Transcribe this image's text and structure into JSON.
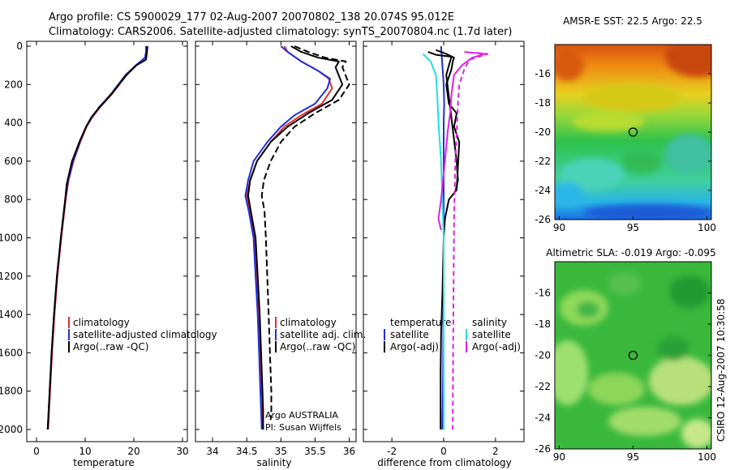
{
  "header": {
    "title_line1": "Argo profile: CS 5900029_177 02-Aug-2007 20070802_138 20.074S 95.012E",
    "title_line2": "Climatology: CARS2006. Satellite-adjusted climatology: synTS_20070804.nc (1.7d later)"
  },
  "side_label": "CSIRO 12-Aug-2007 10:30:58",
  "credit": {
    "line1": "Argo AUSTRALIA",
    "line2": "PI: Susan Wijffels"
  },
  "colors": {
    "red": "#e03030",
    "blue": "#1f2fd8",
    "black": "#000000",
    "cyan": "#22e0e0",
    "magenta": "#e020e0"
  },
  "chart_data": [
    {
      "type": "line",
      "xlabel": "temperature",
      "ylabel": "",
      "xlim": [
        -2,
        31
      ],
      "ylim": [
        2050,
        0
      ],
      "y_reversed": true,
      "xticks": [
        0,
        10,
        20,
        30
      ],
      "yticks": [
        0,
        200,
        400,
        600,
        800,
        1000,
        1200,
        1400,
        1600,
        1800,
        2000
      ],
      "legend": [
        "climatology",
        "satellite-adjusted climatology",
        "Argo(..raw -QC)"
      ],
      "series": [
        {
          "name": "climatology",
          "color": "red",
          "dash": "",
          "x": [
            22.5,
            22.5,
            22.3,
            20.5,
            18.5,
            15.5,
            13.0,
            11.5,
            10.3,
            9.0,
            7.6,
            6.6,
            6.0,
            5.1,
            4.3,
            3.7,
            3.2,
            2.8,
            2.6,
            2.4
          ],
          "y": [
            0,
            30,
            60,
            100,
            150,
            250,
            320,
            370,
            420,
            500,
            600,
            700,
            800,
            1000,
            1200,
            1400,
            1600,
            1800,
            1900,
            2000
          ]
        },
        {
          "name": "satellite-adjusted climatology",
          "color": "blue",
          "dash": "",
          "x": [
            22.5,
            22.5,
            22.3,
            20.4,
            18.3,
            15.3,
            12.8,
            11.4,
            10.2,
            8.9,
            7.5,
            6.5,
            5.9,
            5.0,
            4.2,
            3.6,
            3.1,
            2.7,
            2.5,
            2.3
          ],
          "y": [
            0,
            30,
            60,
            100,
            150,
            250,
            320,
            370,
            420,
            500,
            600,
            700,
            800,
            1000,
            1200,
            1400,
            1600,
            1800,
            1900,
            2000
          ]
        },
        {
          "name": "Argo(..raw -QC)",
          "color": "black",
          "dash": "",
          "x": [
            22.8,
            22.7,
            22.5,
            20.5,
            18.5,
            15.4,
            12.9,
            11.3,
            10.2,
            8.8,
            7.3,
            6.2,
            5.9,
            5.0,
            4.2,
            3.6,
            3.1,
            2.7,
            2.5,
            2.3
          ],
          "y": [
            0,
            30,
            70,
            100,
            150,
            250,
            320,
            370,
            420,
            500,
            600,
            720,
            800,
            1000,
            1200,
            1400,
            1600,
            1800,
            1900,
            2000
          ]
        }
      ]
    },
    {
      "type": "line",
      "xlabel": "salinity",
      "ylabel": "",
      "xlim": [
        33.75,
        36.1
      ],
      "ylim": [
        2050,
        0
      ],
      "y_reversed": true,
      "xticks": [
        34,
        34.5,
        35,
        35.5,
        36
      ],
      "yticks": [
        0,
        200,
        400,
        600,
        800,
        1000,
        1200,
        1400,
        1600,
        1800,
        2000
      ],
      "legend": [
        "climatology",
        "satellite adj. clim.",
        "Argo(..raw -QC)"
      ],
      "series": [
        {
          "name": "climatology",
          "color": "red",
          "dash": "",
          "x": [
            35.05,
            35.1,
            35.3,
            35.55,
            35.7,
            35.75,
            35.6,
            35.3,
            35.05,
            34.85,
            34.65,
            34.55,
            34.5,
            34.55,
            34.62,
            34.65,
            34.68,
            34.7,
            34.72,
            34.73,
            34.74
          ],
          "y": [
            0,
            30,
            80,
            130,
            170,
            220,
            300,
            360,
            420,
            500,
            600,
            700,
            780,
            860,
            1000,
            1200,
            1400,
            1600,
            1800,
            1900,
            2000
          ]
        },
        {
          "name": "satellite adj. clim.",
          "color": "blue",
          "dash": "",
          "x": [
            35.0,
            35.1,
            35.3,
            35.55,
            35.72,
            35.68,
            35.5,
            35.2,
            35.0,
            34.8,
            34.6,
            34.52,
            34.48,
            34.53,
            34.6,
            34.63,
            34.66,
            34.68,
            34.7,
            34.71,
            34.72
          ],
          "y": [
            0,
            30,
            80,
            130,
            170,
            220,
            300,
            360,
            420,
            500,
            600,
            700,
            780,
            860,
            1000,
            1200,
            1400,
            1600,
            1800,
            1900,
            2000
          ]
        },
        {
          "name": "Argo(..raw -QC)",
          "color": "black",
          "dash": "",
          "x": [
            35.15,
            35.3,
            35.55,
            35.85,
            35.8,
            35.9,
            35.75,
            35.4,
            35.1,
            34.85,
            34.65,
            34.55,
            34.52,
            34.56,
            34.63,
            34.66,
            34.69,
            34.71,
            34.73,
            34.74,
            34.74
          ],
          "y": [
            0,
            30,
            60,
            80,
            110,
            200,
            280,
            350,
            420,
            500,
            600,
            700,
            780,
            860,
            1000,
            1200,
            1400,
            1600,
            1800,
            1900,
            2000
          ]
        },
        {
          "name": "Argo(..raw -QC)",
          "color": "black",
          "dash": "8,4",
          "x": [
            35.2,
            35.4,
            35.65,
            35.95,
            35.9,
            36.0,
            35.85,
            35.5,
            35.2,
            35.0,
            34.85,
            34.75,
            34.72,
            34.76,
            34.78,
            34.8,
            34.82,
            34.84,
            34.86,
            34.86,
            34.85
          ],
          "y": [
            0,
            30,
            60,
            80,
            110,
            200,
            280,
            350,
            420,
            500,
            600,
            700,
            780,
            860,
            1000,
            1200,
            1400,
            1600,
            1800,
            1900,
            1950
          ]
        }
      ]
    },
    {
      "type": "line",
      "xlabel": "difference from climatology",
      "ylabel": "",
      "xlim": [
        -3.1,
        3.1
      ],
      "ylim": [
        2050,
        0
      ],
      "y_reversed": true,
      "xticks": [
        -2,
        0,
        2
      ],
      "yticks": [
        0,
        200,
        400,
        600,
        800,
        1000,
        1200,
        1400,
        1600,
        1800,
        2000
      ],
      "legend_left_title": "temperature",
      "legend_right_title": "salinity",
      "legend_left": [
        "satellite",
        "Argo(-adj)"
      ],
      "legend_right": [
        "satellite",
        "Argo(-adj)"
      ],
      "series": [
        {
          "name": "temperature satellite",
          "color": "blue",
          "dash": "",
          "x": [
            -0.1,
            -0.05,
            0.0,
            0.02,
            0.0,
            0.0,
            0.0,
            0.0,
            0.0,
            -0.02,
            -0.03,
            -0.05
          ],
          "y": [
            0,
            100,
            200,
            300,
            400,
            600,
            800,
            1000,
            1200,
            1600,
            1800,
            2000
          ]
        },
        {
          "name": "temperature Argo(-adj)",
          "color": "black",
          "dash": "",
          "x": [
            -0.3,
            0.1,
            0.4,
            0.35,
            0.3,
            0.1,
            0.2,
            0.5,
            0.4,
            0.6,
            0.5,
            0.2,
            0.05,
            0.0,
            -0.05,
            -0.1,
            -0.12,
            -0.12,
            -0.12
          ],
          "y": [
            20,
            40,
            60,
            80,
            120,
            200,
            300,
            350,
            420,
            500,
            750,
            800,
            900,
            1000,
            1300,
            1500,
            1700,
            1900,
            2000
          ]
        },
        {
          "name": "temperature Argo(-adj)",
          "color": "black",
          "dash": "",
          "x": [
            -0.6,
            -0.3,
            0.3,
            0.2,
            0.1,
            0.25,
            0.5,
            0.55,
            0.45
          ],
          "y": [
            30,
            45,
            55,
            100,
            150,
            320,
            600,
            700,
            760
          ]
        },
        {
          "name": "salinity satellite",
          "color": "cyan",
          "dash": "",
          "x": [
            -0.8,
            -0.5,
            -0.3,
            -0.25,
            -0.2,
            -0.1,
            -0.05,
            0.0,
            0.0,
            0.0
          ],
          "y": [
            40,
            80,
            150,
            250,
            400,
            600,
            800,
            1000,
            1500,
            2000
          ]
        },
        {
          "name": "salinity Argo(-adj)",
          "color": "magenta",
          "dash": "",
          "x": [
            0.8,
            1.6,
            1.1,
            0.7,
            0.4,
            0.3,
            0.25,
            0.15,
            0.05,
            -0.1,
            -0.2,
            -0.1
          ],
          "y": [
            30,
            40,
            60,
            100,
            150,
            250,
            350,
            450,
            600,
            800,
            900,
            960
          ]
        },
        {
          "name": "salinity Argo(-adj)",
          "color": "magenta",
          "dash": "6,4",
          "x": [
            1.3,
            1.7,
            1.0,
            0.8,
            0.6,
            0.55,
            0.5,
            0.45,
            0.4,
            0.38,
            0.36,
            0.35
          ],
          "y": [
            35,
            40,
            70,
            120,
            200,
            300,
            450,
            600,
            900,
            1300,
            1700,
            2000
          ]
        }
      ]
    },
    {
      "type": "heatmap",
      "title": "AMSR-E SST: 22.5 Argo: 22.5",
      "xlim": [
        89.7,
        100.3
      ],
      "ylim": [
        -26,
        -14
      ],
      "xticks": [
        90,
        95,
        100
      ],
      "yticks": [
        -16,
        -18,
        -20,
        -22,
        -24,
        -26
      ],
      "marker": {
        "x": 95,
        "y": -20
      }
    },
    {
      "type": "heatmap",
      "title": "Altimetric SLA: -0.019 Argo: -0.095",
      "xlim": [
        89.7,
        100.3
      ],
      "ylim": [
        -26,
        -14
      ],
      "xticks": [
        90,
        95,
        100
      ],
      "yticks": [
        -16,
        -18,
        -20,
        -22,
        -24,
        -26
      ],
      "marker": {
        "x": 95,
        "y": -20
      }
    }
  ]
}
